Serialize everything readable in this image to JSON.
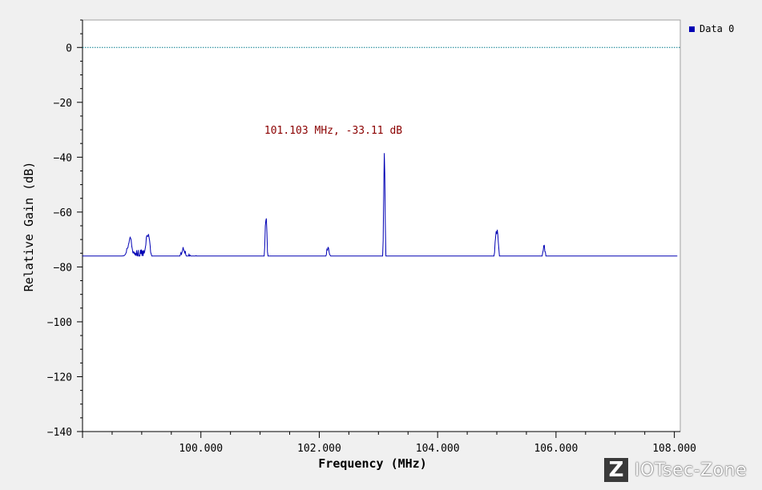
{
  "chart_data": {
    "type": "line",
    "xlabel": "Frequency (MHz)",
    "ylabel": "Relative Gain (dB)",
    "xlim": [
      98.0,
      108.1
    ],
    "ylim": [
      -140,
      10
    ],
    "x_ticks": [
      "100.000",
      "102.000",
      "104.000",
      "106.000",
      "108.000"
    ],
    "x_tick_values": [
      100,
      102,
      104,
      106,
      108
    ],
    "y_ticks": [
      "0",
      "−20",
      "−40",
      "−60",
      "−80",
      "−100",
      "−120",
      "−140"
    ],
    "y_tick_values": [
      0,
      -20,
      -40,
      -60,
      -80,
      -100,
      -120,
      -140
    ],
    "reference_line": 0,
    "annotation": "101.103 MHz, -33.11 dB",
    "legend_position": "top-right",
    "series": [
      {
        "name": "Data 0",
        "color": "#0000b4",
        "baseline": [
          [
            98.0,
            -85
          ],
          [
            98.4,
            -84
          ],
          [
            98.8,
            -76
          ],
          [
            99.0,
            -76
          ],
          [
            99.2,
            -79
          ],
          [
            99.5,
            -79
          ],
          [
            99.8,
            -78
          ],
          [
            100.2,
            -80
          ],
          [
            100.6,
            -81
          ],
          [
            101.0,
            -81
          ],
          [
            101.5,
            -82
          ],
          [
            102.0,
            -82
          ],
          [
            102.5,
            -83
          ],
          [
            103.0,
            -83
          ],
          [
            103.5,
            -82
          ],
          [
            104.0,
            -82
          ],
          [
            104.5,
            -82
          ],
          [
            105.0,
            -83
          ],
          [
            105.5,
            -82
          ],
          [
            106.0,
            -83
          ],
          [
            106.5,
            -83
          ],
          [
            107.0,
            -84
          ],
          [
            107.5,
            -84
          ],
          [
            108.1,
            -85
          ]
        ],
        "peaks": [
          [
            98.8,
            -70
          ],
          [
            99.1,
            -68
          ],
          [
            99.7,
            -73
          ],
          [
            101.1,
            -62
          ],
          [
            102.15,
            -73
          ],
          [
            103.1,
            -39
          ],
          [
            104.35,
            -80
          ],
          [
            105.0,
            -67
          ],
          [
            105.8,
            -73
          ]
        ]
      }
    ],
    "colors": {
      "trace": "#0000b4",
      "reference": "#007a8c",
      "annotation": "#8b0000"
    }
  },
  "watermark": {
    "logo_letter": "Z",
    "text": "IOTsec-Zone"
  }
}
